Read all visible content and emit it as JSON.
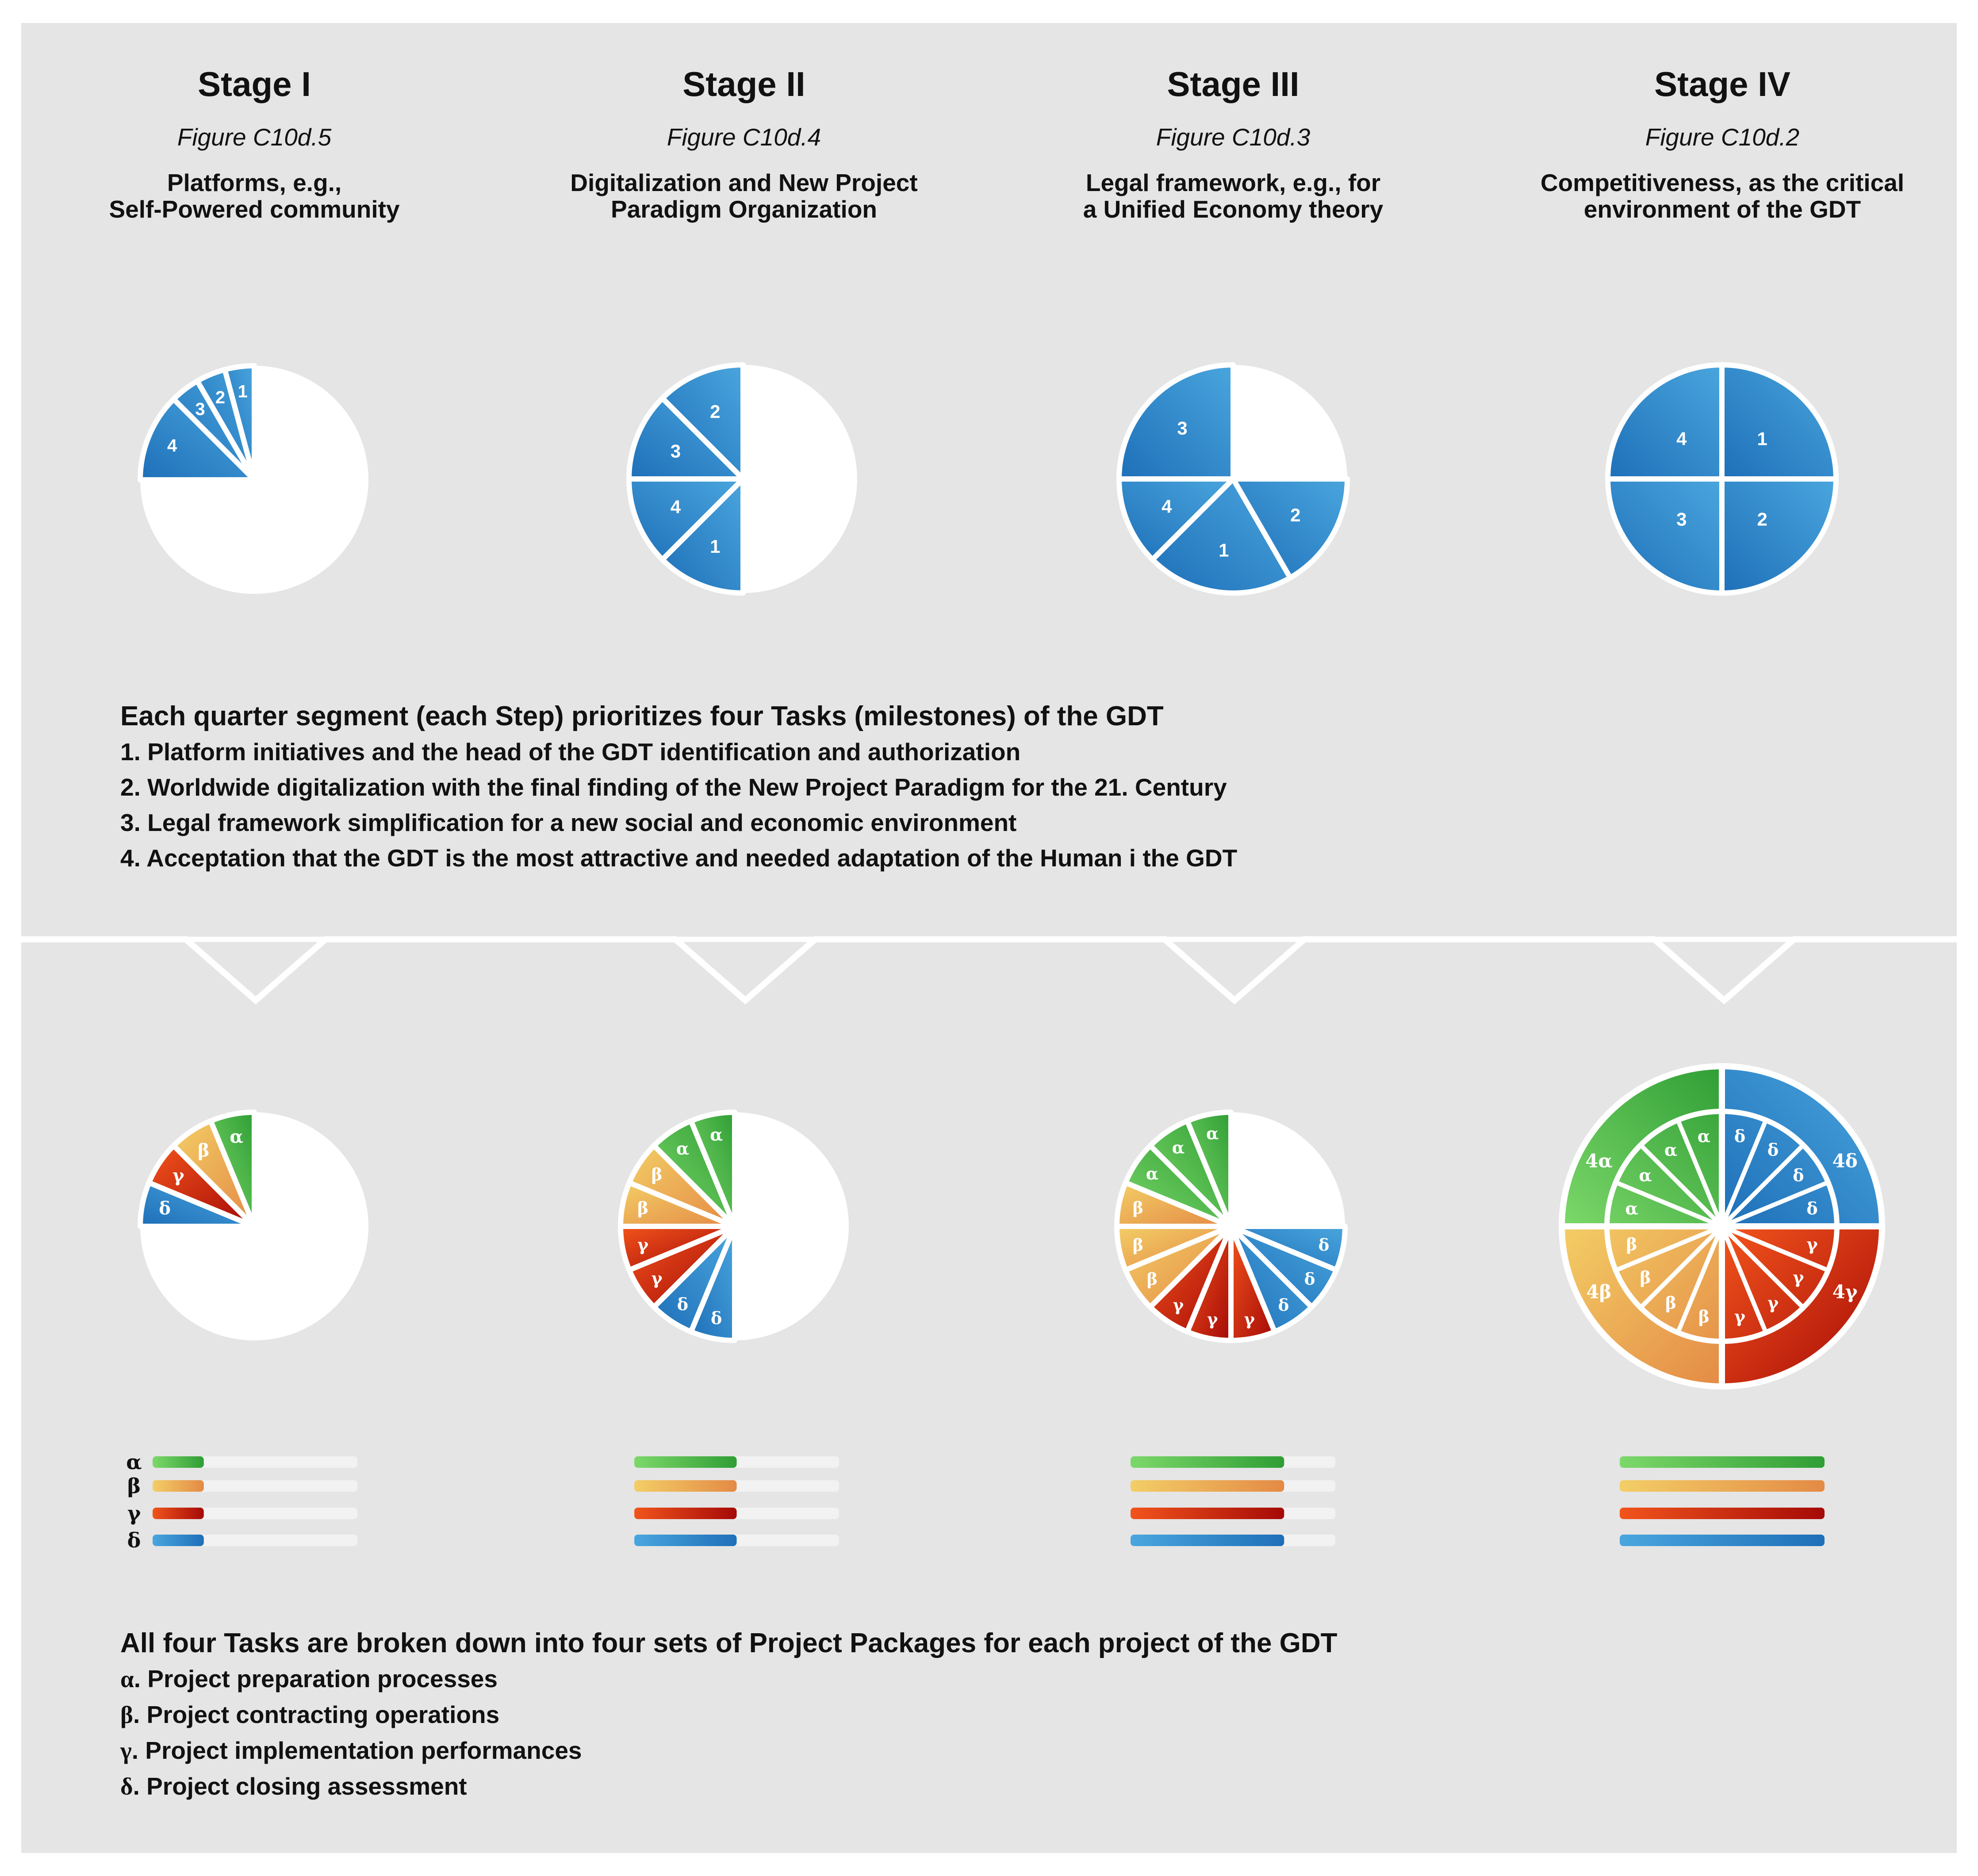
{
  "stages": [
    {
      "title": "Stage I",
      "figure": "Figure C10d.5",
      "desc": [
        "Platforms, e.g.,",
        "Self-Powered community"
      ]
    },
    {
      "title": "Stage II",
      "figure": "Figure C10d.4",
      "desc": [
        "Digitalization and New Project",
        "Paradigm Organization"
      ]
    },
    {
      "title": "Stage III",
      "figure": "Figure C10d.3",
      "desc": [
        "Legal framework, e.g., for",
        "a Unified Economy theory"
      ]
    },
    {
      "title": "Stage IV",
      "figure": "Figure C10d.2",
      "desc": [
        "Competitiveness, as the critical",
        "environment of the GDT"
      ]
    }
  ],
  "tasks": {
    "heading": "Each quarter segment (each Step) prioritizes four Tasks (milestones) of the GDT",
    "items": [
      "1. Platform initiatives and the head of the GDT identification and authorization",
      "2. Worldwide digitalization with the final finding of the New Project Paradigm for the 21. Century",
      "3. Legal framework simplification for a new social and economic environment",
      "4. Acceptation that the GDT is the most attractive and needed adaptation of the Human i the GDT"
    ]
  },
  "packages": {
    "heading": "All four Tasks are broken down into four sets of Project Packages for each project of the GDT",
    "items": [
      {
        "sym": "α",
        "text": ". Project preparation processes"
      },
      {
        "sym": "β",
        "text": ". Project contracting operations"
      },
      {
        "sym": "γ",
        "text": ". Project implementation performances"
      },
      {
        "sym": "δ",
        "text": ". Project closing assessment"
      }
    ]
  },
  "greek": {
    "alpha": "α",
    "beta": "β",
    "gamma": "γ",
    "delta": "δ"
  },
  "task_pies": [
    {
      "labels": [
        "1",
        "2",
        "3",
        "4"
      ],
      "filled_fraction": 0.25
    },
    {
      "labels": [
        "2",
        "3",
        "4",
        "1"
      ],
      "filled_fraction": 0.5
    },
    {
      "labels": [
        "3",
        "4",
        "1",
        "2"
      ],
      "filled_fraction": 0.75
    },
    {
      "labels": [
        "4",
        "1",
        "3",
        "2"
      ],
      "filled_fraction": 1.0
    }
  ],
  "package_pies": [
    {
      "filled_fraction": 0.25,
      "slices_per_package": 1
    },
    {
      "filled_fraction": 0.5,
      "slices_per_package": 2
    },
    {
      "filled_fraction": 0.75,
      "slices_per_package": 3
    },
    {
      "filled_fraction": 1.0,
      "slices_per_package": 4
    },
    {
      "outer_labels": [
        "4α",
        "4δ",
        "4β",
        "4γ"
      ]
    }
  ],
  "progress_bars": [
    {
      "fill": 0.25
    },
    {
      "fill": 0.5
    },
    {
      "fill": 0.75
    },
    {
      "fill": 1.0
    }
  ],
  "colors": {
    "panel": "#e5e5e5",
    "blue_light": "#4aa6de",
    "blue_dark": "#1e6fb8",
    "green_light": "#7dd86a",
    "green_dark": "#2f9e35",
    "orange_light": "#f3ce66",
    "orange_dark": "#e48a45",
    "red_light": "#f2541c",
    "red_dark": "#a50a07"
  }
}
